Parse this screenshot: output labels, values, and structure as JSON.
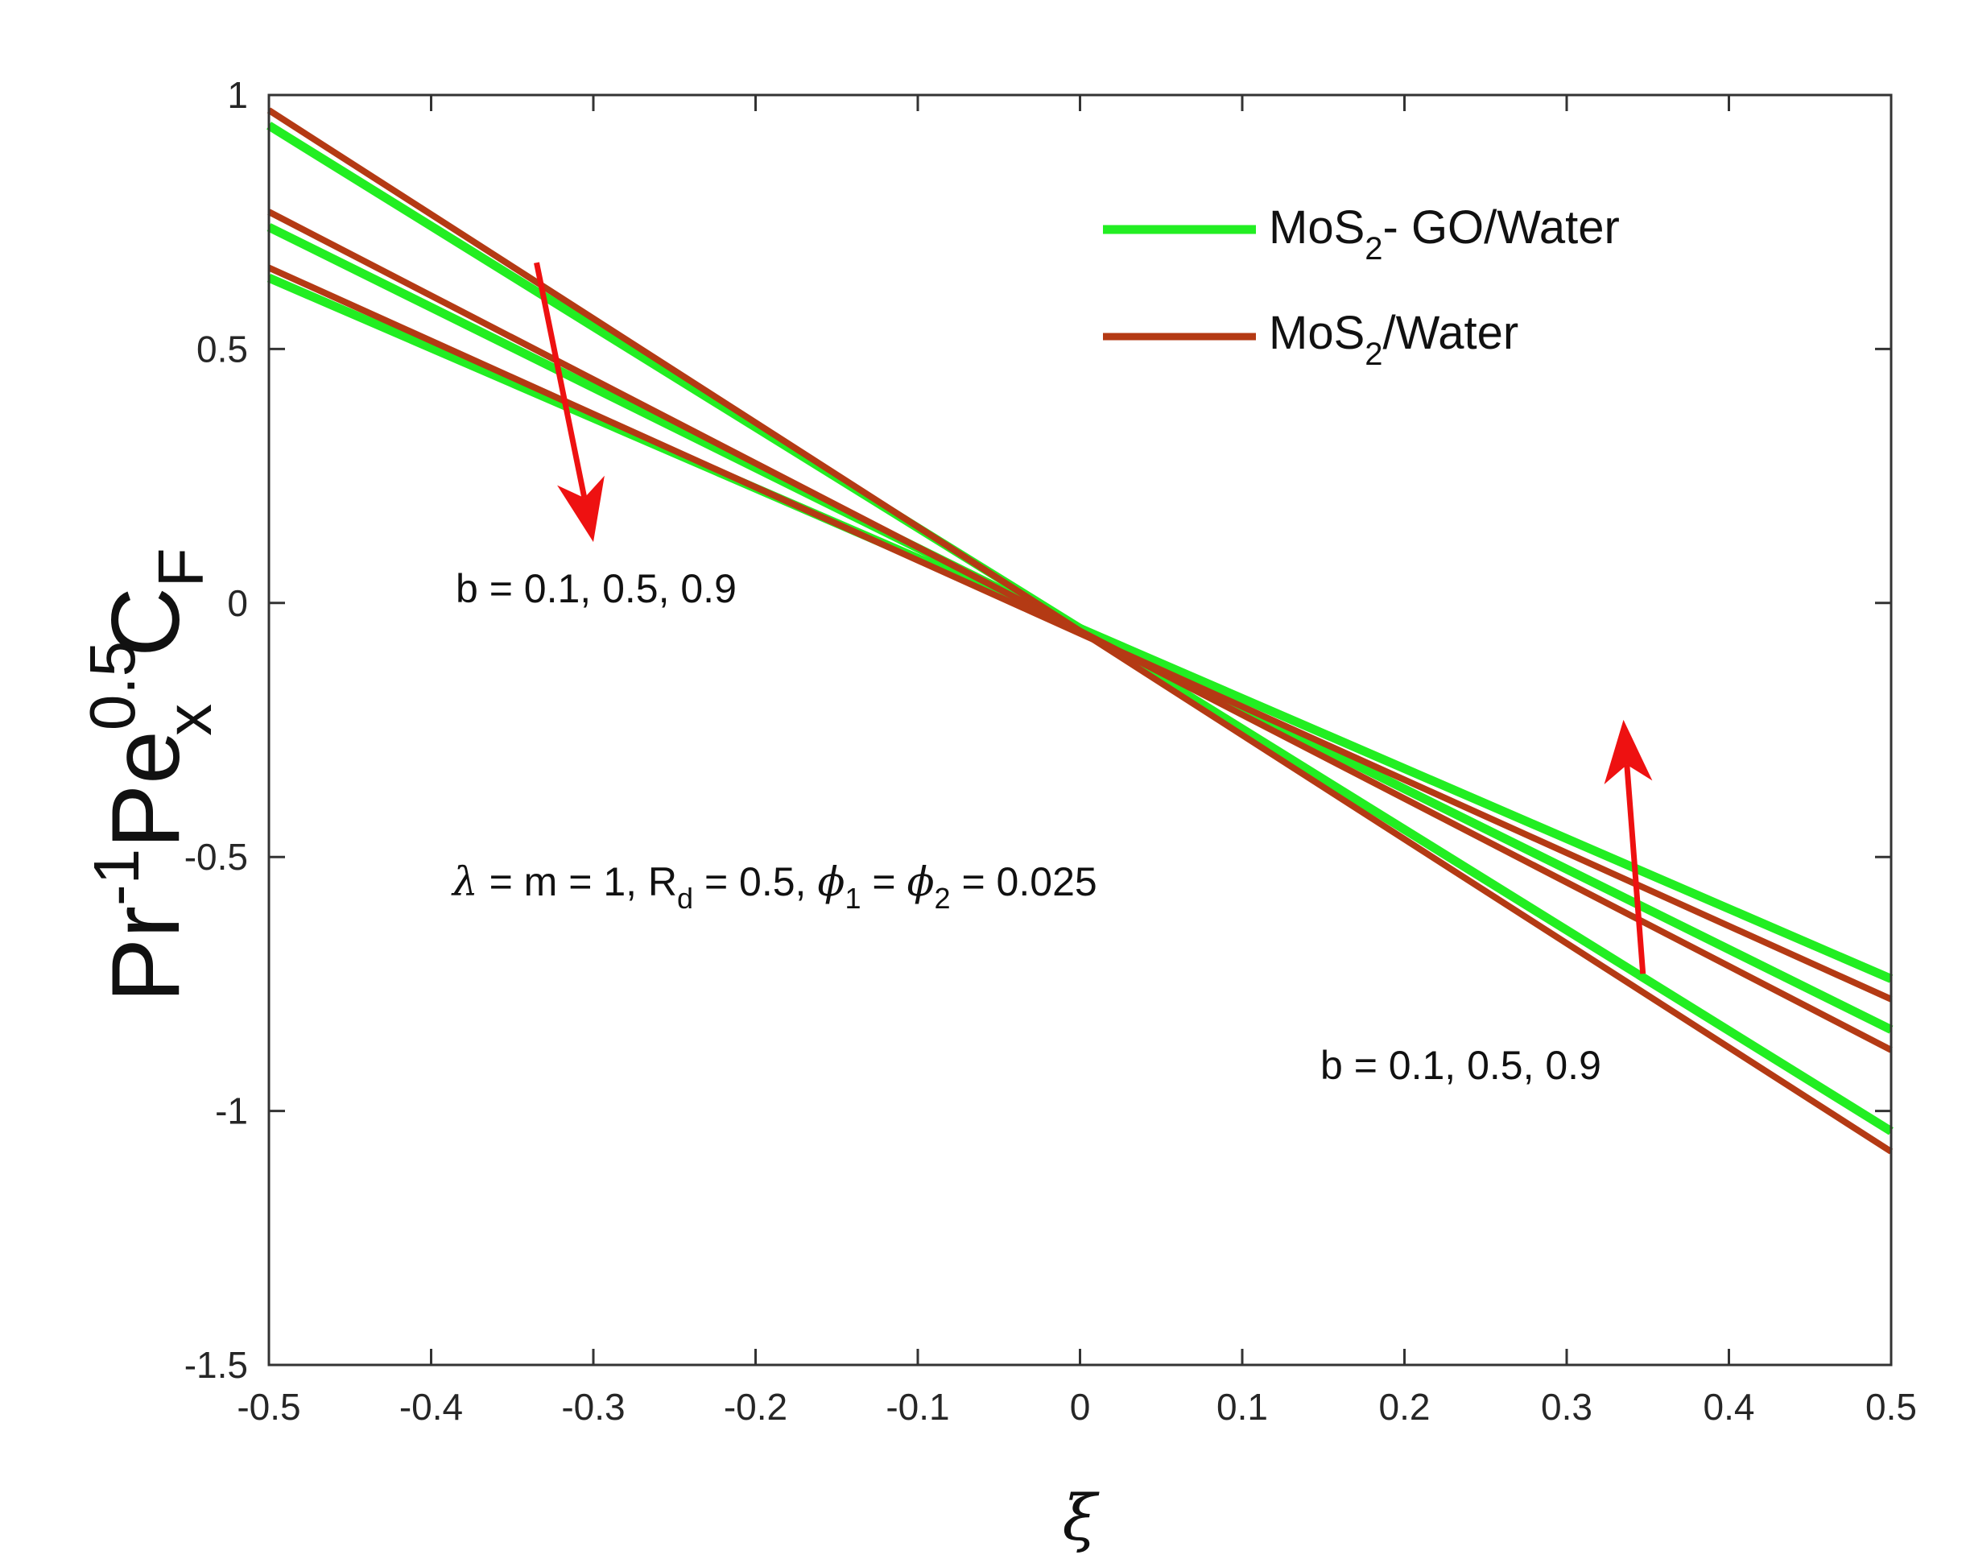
{
  "chart_data": {
    "type": "line",
    "title": "",
    "xlabel": "ξ",
    "ylabel": {
      "base1": "Pr",
      "sup1": "-1",
      "base2": "Pe",
      "sup2": "0.5",
      "sub2": "x",
      "base3": "C",
      "sub3": "F"
    },
    "xlim": [
      -0.5,
      0.5
    ],
    "ylim": [
      -1.5,
      1
    ],
    "xticks": [
      -0.5,
      -0.4,
      -0.3,
      -0.2,
      -0.1,
      0,
      0.1,
      0.2,
      0.3,
      0.4,
      0.5
    ],
    "yticks": [
      -1.5,
      -1,
      -0.5,
      0,
      0.5,
      1
    ],
    "xtick_labels": [
      "-0.5",
      "-0.4",
      "-0.3",
      "-0.2",
      "-0.1",
      "0",
      "0.1",
      "0.2",
      "0.3",
      "0.4",
      "0.5"
    ],
    "ytick_labels": [
      "-1.5",
      "-1",
      "-0.5",
      "0",
      "0.5",
      "1"
    ],
    "grid": false,
    "legend_position": "top-right",
    "legend": [
      {
        "pre": "MoS",
        "sub": "2",
        "post": "- GO/Water",
        "color": "#22ee22"
      },
      {
        "pre": "MoS",
        "sub": "2",
        "post": "/Water",
        "color": "#b43a14"
      }
    ],
    "series": [
      {
        "name": "MoS2- GO/Water b=0.1",
        "group": "hybrid",
        "b": 0.1,
        "color": "#22ee22",
        "x": [
          -0.5,
          0.5
        ],
        "y": [
          0.94,
          -1.04
        ]
      },
      {
        "name": "MoS2- GO/Water b=0.5",
        "group": "hybrid",
        "b": 0.5,
        "color": "#22ee22",
        "x": [
          -0.5,
          0.5
        ],
        "y": [
          0.74,
          -0.84
        ]
      },
      {
        "name": "MoS2- GO/Water b=0.9",
        "group": "hybrid",
        "b": 0.9,
        "color": "#22ee22",
        "x": [
          -0.5,
          0.5
        ],
        "y": [
          0.64,
          -0.74
        ]
      },
      {
        "name": "MoS2/Water b=0.1",
        "group": "mono",
        "b": 0.1,
        "color": "#b43a14",
        "x": [
          -0.5,
          0.5
        ],
        "y": [
          0.97,
          -1.08
        ]
      },
      {
        "name": "MoS2/Water b=0.5",
        "group": "mono",
        "b": 0.5,
        "color": "#b43a14",
        "x": [
          -0.5,
          0.5
        ],
        "y": [
          0.77,
          -0.88
        ]
      },
      {
        "name": "MoS2/Water b=0.9",
        "group": "mono",
        "b": 0.9,
        "color": "#b43a14",
        "x": [
          -0.5,
          0.5
        ],
        "y": [
          0.66,
          -0.78
        ]
      }
    ],
    "arrows": [
      {
        "name": "upper-arrow",
        "color": "#ee1111",
        "from": [
          -0.335,
          0.67
        ],
        "to": [
          -0.3,
          0.12
        ]
      },
      {
        "name": "lower-arrow",
        "color": "#ee1111",
        "from": [
          0.347,
          -0.73
        ],
        "to": [
          0.335,
          -0.23
        ]
      }
    ],
    "annotations": {
      "upper_b": "b = 0.1, 0.5, 0.9",
      "lower_b": "b = 0.1, 0.5, 0.9",
      "params": {
        "lambda": "λ",
        "t1": " = m = 1, R",
        "rd_sub": "d",
        "t2": " = 0.5, ",
        "phi": "ϕ",
        "phi1_sub": "1",
        "t3": " = ",
        "phi2_sub": "2",
        "t4": " = 0.025"
      }
    }
  }
}
